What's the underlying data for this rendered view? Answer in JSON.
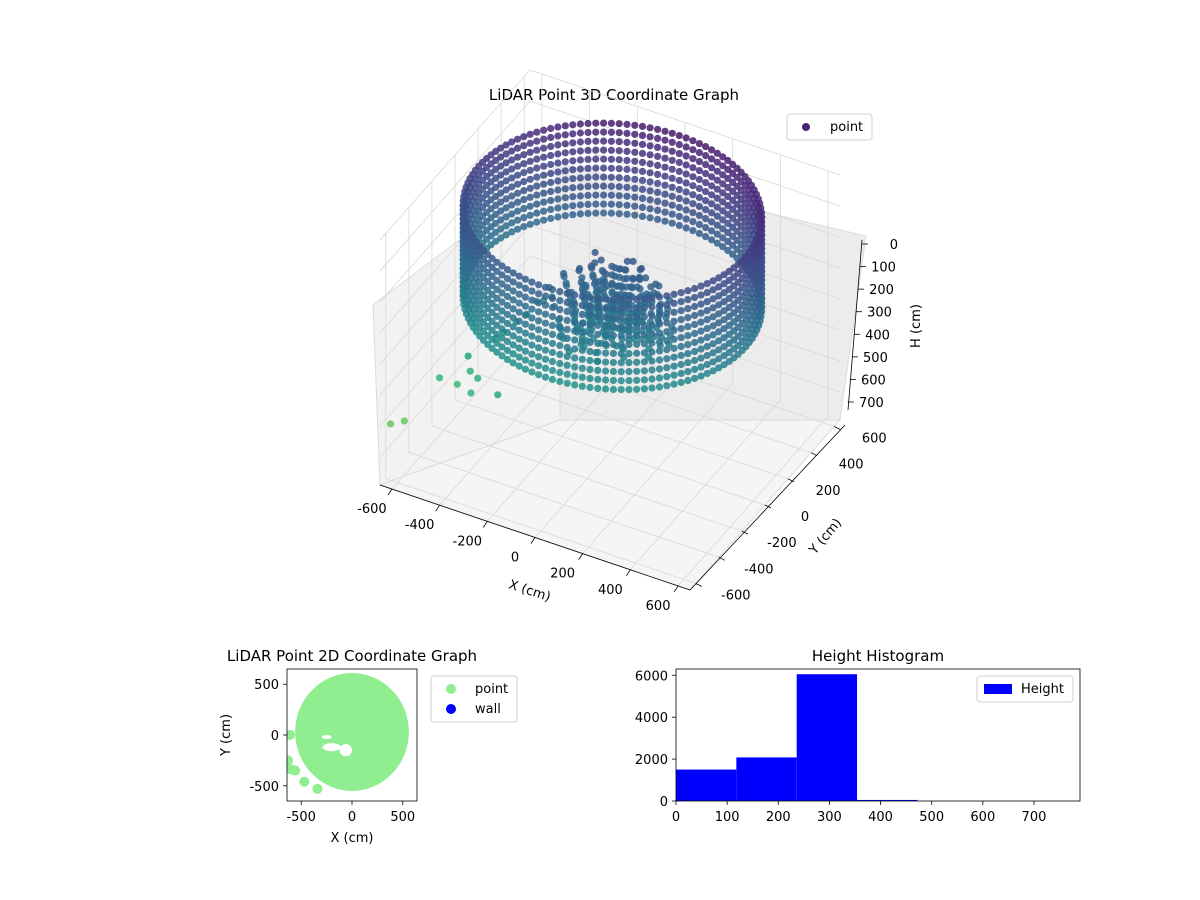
{
  "chart_data": [
    {
      "type": "scatter",
      "projection": "3d",
      "title": "LiDAR Point 3D Coordinate Graph",
      "xlabel": "X (cm)",
      "ylabel": "Y (cm)",
      "zlabel": "H (cm)",
      "xlim": [
        -650,
        650
      ],
      "ylim": [
        -650,
        650
      ],
      "zlim": [
        790,
        0
      ],
      "z_inverted": true,
      "xticks": [
        -600,
        -400,
        -200,
        0,
        200,
        400,
        600
      ],
      "yticks": [
        -600,
        -400,
        -200,
        0,
        200,
        400,
        600
      ],
      "zticks": [
        0,
        100,
        200,
        300,
        400,
        500,
        600,
        700
      ],
      "colormap": "viridis",
      "point_color": "#482575",
      "legend": {
        "entries": [
          "point"
        ],
        "placement": "upper-right"
      },
      "grid": true,
      "series": [
        {
          "name": "point",
          "ring": {
            "radius_x": 560,
            "radius_y": 580,
            "center_x": 10,
            "center_y": 0,
            "h_top": 10,
            "h_bottom": 300
          },
          "outliers": [
            {
              "x": -640,
              "y": -580,
              "h": 620
            },
            {
              "x": -630,
              "y": -480,
              "h": 650
            },
            {
              "x": -560,
              "y": -320,
              "h": 560
            },
            {
              "x": -520,
              "y": -250,
              "h": 600
            },
            {
              "x": -480,
              "y": -220,
              "h": 560
            },
            {
              "x": -450,
              "y": -300,
              "h": 470
            },
            {
              "x": -400,
              "y": -320,
              "h": 520
            },
            {
              "x": -420,
              "y": -120,
              "h": 480
            },
            {
              "x": -360,
              "y": -180,
              "h": 420
            },
            {
              "x": -330,
              "y": -130,
              "h": 400
            },
            {
              "x": -300,
              "y": -100,
              "h": 380
            },
            {
              "x": -280,
              "y": -60,
              "h": 350
            },
            {
              "x": -250,
              "y": -60,
              "h": 340
            },
            {
              "x": -380,
              "y": -420,
              "h": 520
            },
            {
              "x": -200,
              "y": -560,
              "h": 420
            }
          ]
        }
      ]
    },
    {
      "type": "scatter",
      "title": "LiDAR Point 2D Coordinate Graph",
      "xlabel": "X (cm)",
      "ylabel": "Y (cm)",
      "xlim": [
        -640,
        640
      ],
      "ylim": [
        -650,
        650
      ],
      "xticks": [
        -500,
        0,
        500
      ],
      "yticks": [
        -500,
        0,
        500
      ],
      "legend": {
        "entries": [
          "point",
          "wall"
        ],
        "placement": "outside-right"
      },
      "series": [
        {
          "name": "point",
          "color": "#90ee90"
        },
        {
          "name": "wall",
          "color": "#0000ff"
        }
      ],
      "ring": {
        "radius_x": 560,
        "radius_y": 580,
        "center_x": 0,
        "center_y": 30
      },
      "outliers": [
        {
          "x": -630,
          "y": -250
        },
        {
          "x": -600,
          "y": -340
        },
        {
          "x": -560,
          "y": -350
        },
        {
          "x": -470,
          "y": -460
        },
        {
          "x": -340,
          "y": -530
        },
        {
          "x": -610,
          "y": 0
        }
      ]
    },
    {
      "type": "bar",
      "title": "Height Histogram",
      "xlabel": "",
      "ylabel": "",
      "xlim": [
        0,
        790
      ],
      "ylim": [
        0,
        6300
      ],
      "xticks": [
        0,
        100,
        200,
        300,
        400,
        500,
        600,
        700
      ],
      "yticks": [
        0,
        2000,
        4000,
        6000
      ],
      "bin_edges": [
        0,
        118,
        236,
        354,
        472,
        590,
        708,
        790
      ],
      "values": [
        1500,
        2080,
        6050,
        50,
        0,
        0,
        0
      ],
      "color": "#0000ff",
      "legend": {
        "entries": [
          "Height"
        ],
        "placement": "upper-right"
      }
    }
  ]
}
